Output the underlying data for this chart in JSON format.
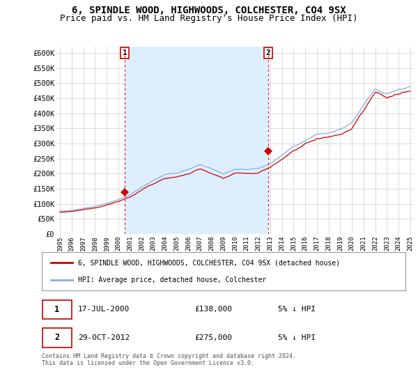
{
  "title": "6, SPINDLE WOOD, HIGHWOODS, COLCHESTER, CO4 9SX",
  "subtitle": "Price paid vs. HM Land Registry's House Price Index (HPI)",
  "title_fontsize": 10,
  "subtitle_fontsize": 9,
  "ylim": [
    0,
    620000
  ],
  "yticks": [
    0,
    50000,
    100000,
    150000,
    200000,
    250000,
    300000,
    350000,
    400000,
    450000,
    500000,
    550000,
    600000
  ],
  "ytick_labels": [
    "£0",
    "£50K",
    "£100K",
    "£150K",
    "£200K",
    "£250K",
    "£300K",
    "£350K",
    "£400K",
    "£450K",
    "£500K",
    "£550K",
    "£600K"
  ],
  "background_color": "#ffffff",
  "plot_bg_color": "#ffffff",
  "grid_color": "#cccccc",
  "shade_color": "#ddeeff",
  "legend_label_red": "6, SPINDLE WOOD, HIGHWOODS, COLCHESTER, CO4 9SX (detached house)",
  "legend_label_blue": "HPI: Average price, detached house, Colchester",
  "footnote": "Contains HM Land Registry data © Crown copyright and database right 2024.\nThis data is licensed under the Open Government Licence v3.0.",
  "annotation1_date": "17-JUL-2000",
  "annotation1_price": "£138,000",
  "annotation1_hpi": "5% ↓ HPI",
  "annotation2_date": "29-OCT-2012",
  "annotation2_price": "£275,000",
  "annotation2_hpi": "5% ↓ HPI",
  "red_line_color": "#cc0000",
  "blue_line_color": "#88aadd",
  "vline_color": "#cc0000",
  "marker1_x": 2000.55,
  "marker1_y": 138000,
  "marker2_x": 2012.83,
  "marker2_y": 275000,
  "xtick_years": [
    1995,
    1996,
    1997,
    1998,
    1999,
    2000,
    2001,
    2002,
    2003,
    2004,
    2005,
    2006,
    2007,
    2008,
    2009,
    2010,
    2011,
    2012,
    2013,
    2014,
    2015,
    2016,
    2017,
    2018,
    2019,
    2020,
    2021,
    2022,
    2023,
    2024,
    2025
  ]
}
